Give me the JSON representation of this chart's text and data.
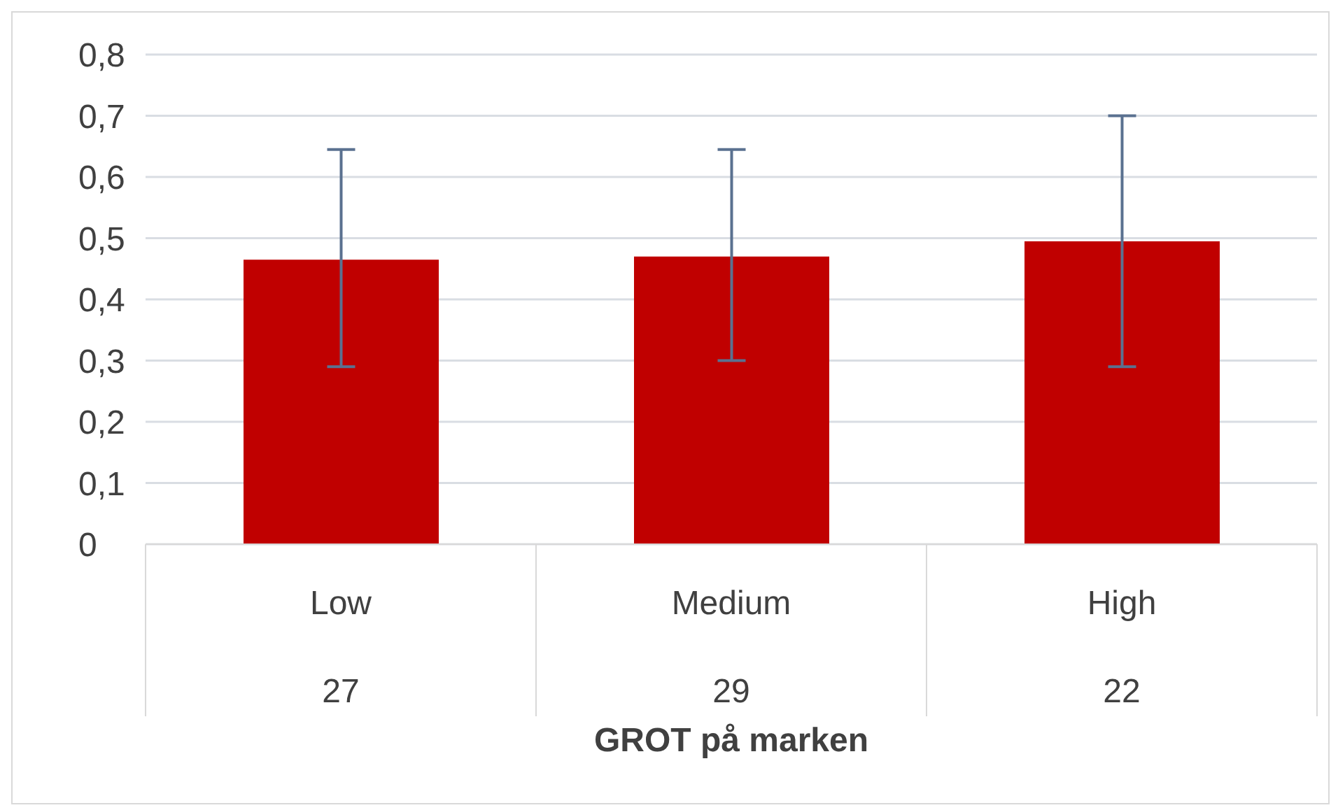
{
  "chart_data": {
    "type": "bar",
    "xlabel": "GROT på marken",
    "categories": [
      "Low",
      "Medium",
      "High"
    ],
    "values": [
      0.465,
      0.47,
      0.495
    ],
    "errors": [
      [
        0.29,
        0.645
      ],
      [
        0.3,
        0.645
      ],
      [
        0.29,
        0.7
      ]
    ],
    "color": "#c00000",
    "ylim": [
      0,
      0.8
    ],
    "yticks": [
      {
        "value": 0,
        "label": "0"
      },
      {
        "value": 0.1,
        "label": "0,1"
      },
      {
        "value": 0.2,
        "label": "0,2"
      },
      {
        "value": 0.3,
        "label": "0,3"
      },
      {
        "value": 0.4,
        "label": "0,4"
      },
      {
        "value": 0.5,
        "label": "0,5"
      },
      {
        "value": 0.6,
        "label": "0,6"
      },
      {
        "value": 0.7,
        "label": "0,7"
      },
      {
        "value": 0.8,
        "label": "0,8"
      }
    ],
    "grid": "y",
    "annotations": [
      "27",
      "29",
      "22"
    ]
  }
}
